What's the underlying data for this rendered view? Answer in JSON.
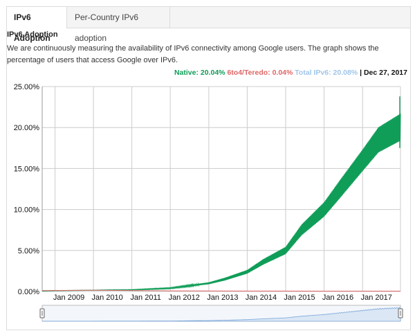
{
  "tabs": [
    {
      "label": "IPv6 Adoption",
      "active": true
    },
    {
      "label": "Per-Country IPv6 adoption",
      "active": false
    }
  ],
  "section_title": "IPv6 Adoption",
  "description": "We are continuously measuring the availability of IPv6 connectivity among Google users. The graph shows the percentage of users that access Google over IPv6.",
  "legend": {
    "native": "Native: 20.04%",
    "sixto4": "6to4/Teredo: 0.04%",
    "total": "Total IPv6: 20.08%",
    "separator": "|",
    "date": "Dec 27, 2017"
  },
  "colors": {
    "native": "#0f9d58",
    "sixto4": "#e06666",
    "total": "#9fc5e8",
    "grid": "#cccccc"
  },
  "chart_data": {
    "type": "line",
    "title": "",
    "xlabel": "",
    "ylabel": "",
    "ylim": [
      0,
      25
    ],
    "grid": true,
    "legend_placement": "top-right",
    "y_ticks": [
      "0.00%",
      "5.00%",
      "10.00%",
      "15.00%",
      "20.00%",
      "25.00%"
    ],
    "y_tick_values": [
      0,
      5,
      10,
      15,
      20,
      25
    ],
    "x_ticks": [
      "Jan 2009",
      "Jan 2010",
      "Jan 2011",
      "Jan 2012",
      "Jan 2013",
      "Jan 2014",
      "Jan 2015",
      "Jan 2016",
      "Jan 2017"
    ],
    "x_range": [
      "2008-09-01",
      "2017-12-27"
    ],
    "series": [
      {
        "name": "Native",
        "x": [
          "2008-09-01",
          "2009-01-01",
          "2009-06-01",
          "2010-01-01",
          "2010-06-01",
          "2011-01-01",
          "2011-06-01",
          "2012-01-01",
          "2012-06-01",
          "2013-01-01",
          "2013-06-01",
          "2014-01-01",
          "2014-06-01",
          "2015-01-01",
          "2015-06-01",
          "2016-01-01",
          "2016-06-01",
          "2017-01-01",
          "2017-06-01",
          "2017-12-27"
        ],
        "values": [
          0.05,
          0.1,
          0.12,
          0.15,
          0.18,
          0.2,
          0.28,
          0.4,
          0.65,
          1.0,
          1.5,
          2.4,
          3.6,
          5.0,
          7.5,
          10.0,
          12.5,
          16.0,
          18.5,
          20.04
        ],
        "swing": [
          0.02,
          0.03,
          0.03,
          0.03,
          0.04,
          0.05,
          0.08,
          0.1,
          0.15,
          0.2,
          0.3,
          0.4,
          0.6,
          0.8,
          1.2,
          1.6,
          2.0,
          2.4,
          2.8,
          3.0
        ]
      },
      {
        "name": "6to4/Teredo",
        "x": [
          "2008-09-01",
          "2010-01-01",
          "2012-01-01",
          "2014-01-01",
          "2016-01-01",
          "2017-12-27"
        ],
        "values": [
          0.1,
          0.15,
          0.08,
          0.05,
          0.04,
          0.04
        ]
      }
    ]
  }
}
